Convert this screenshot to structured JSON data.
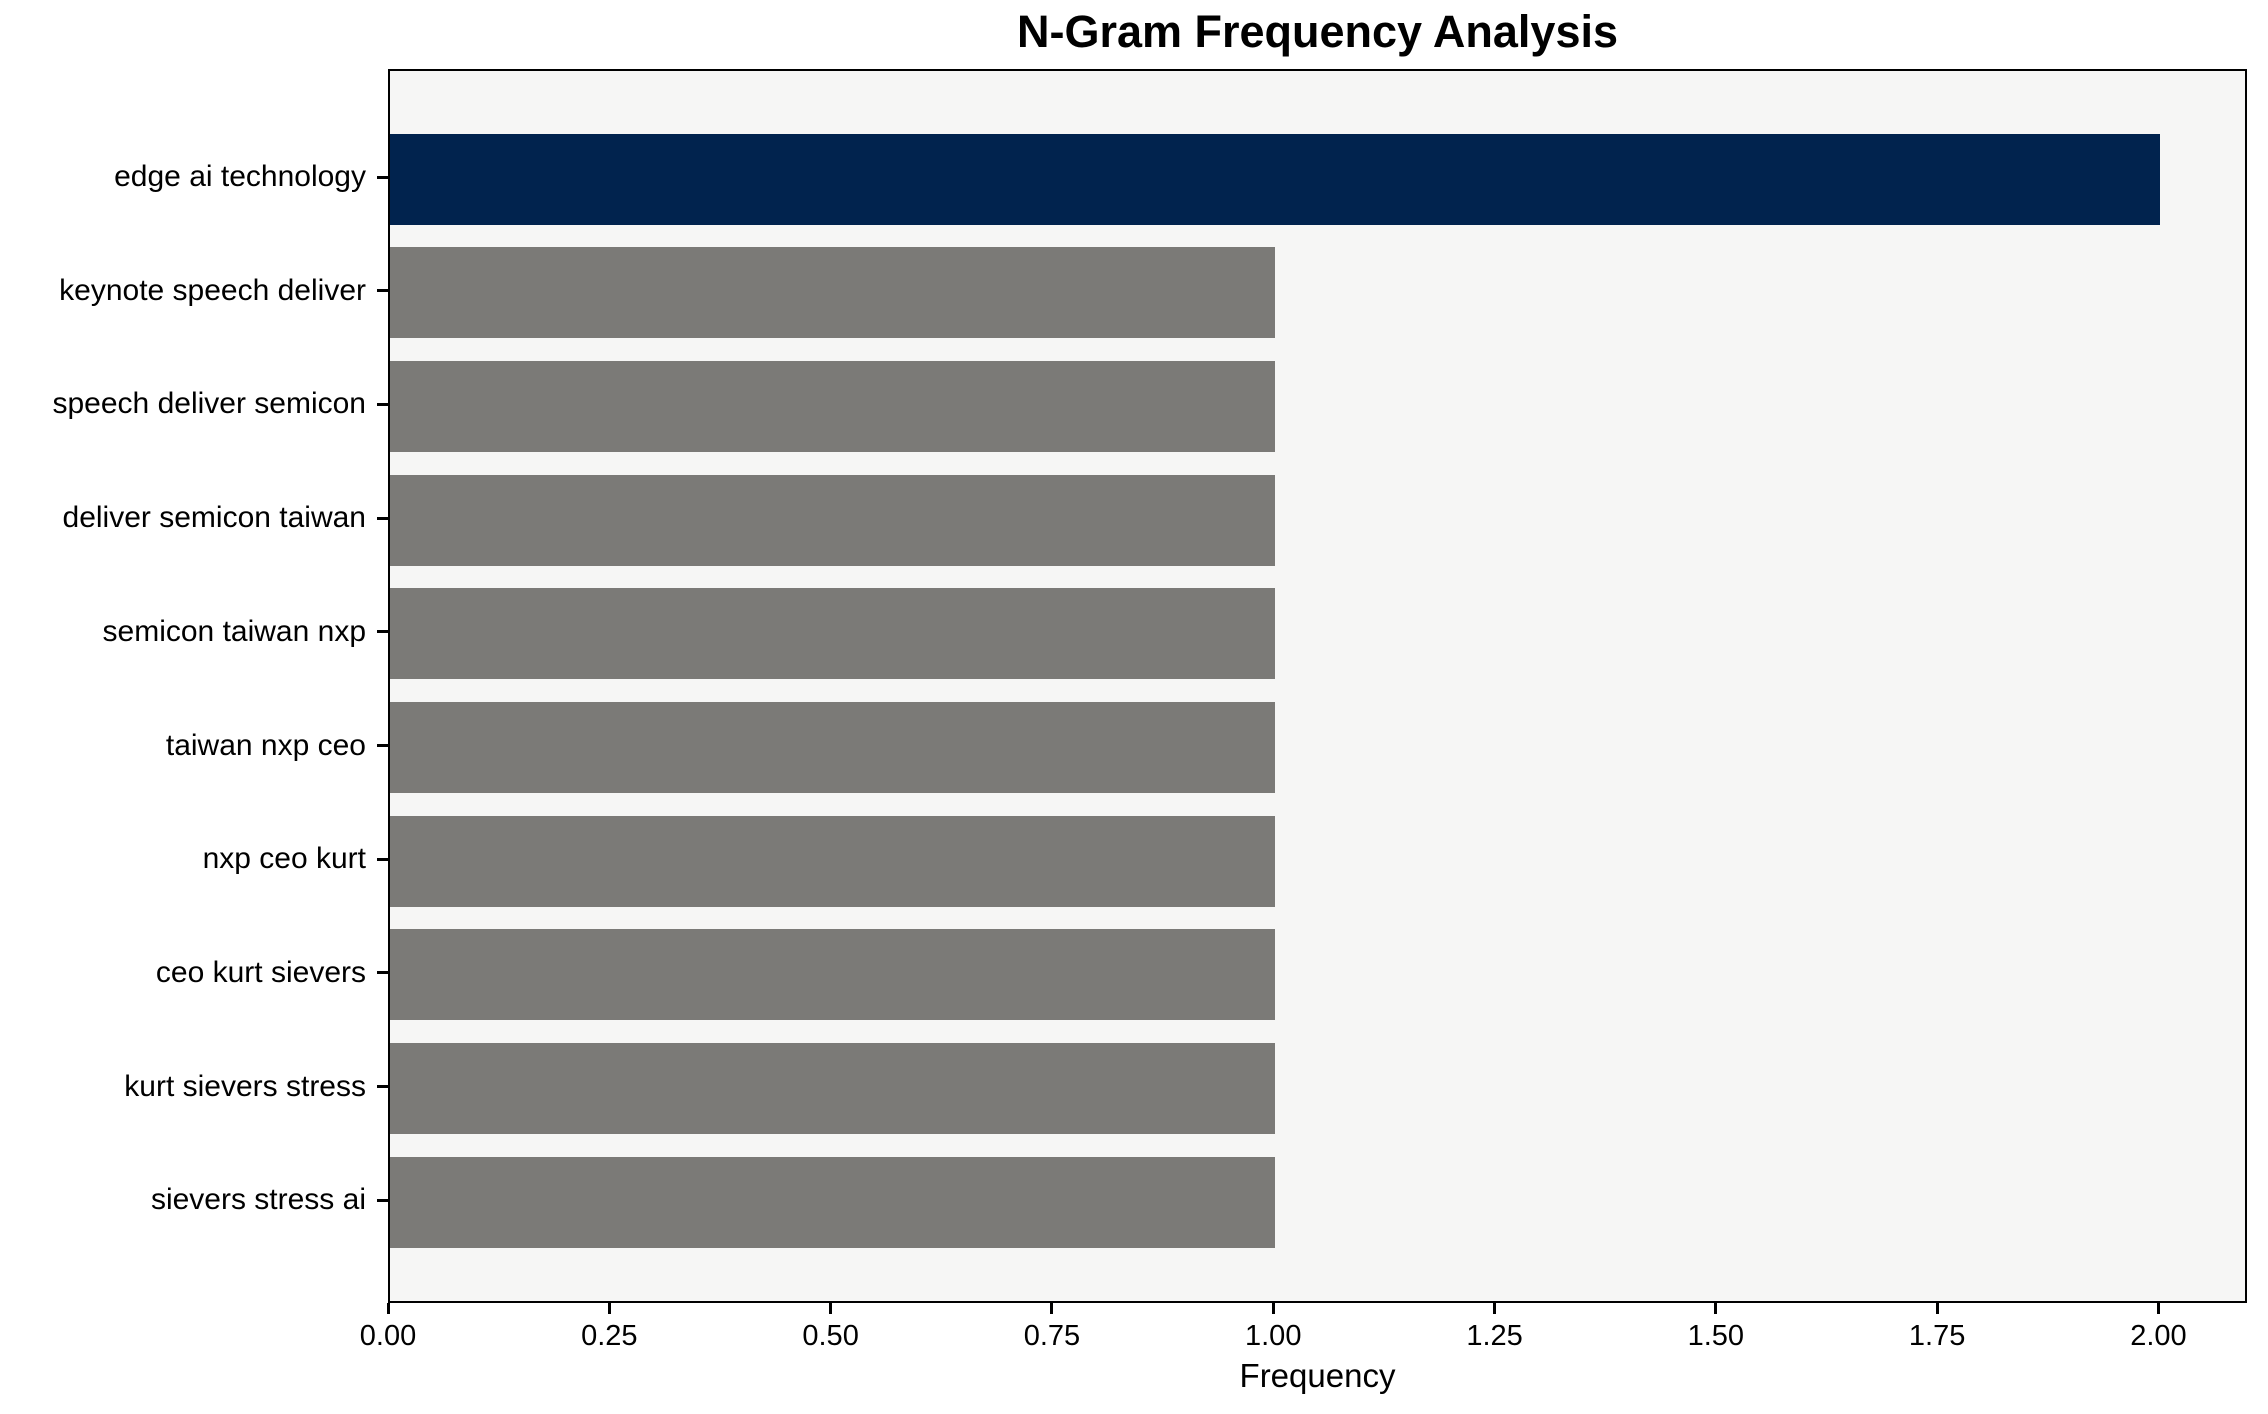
{
  "page": {
    "title": "N-Gram Frequency Analysis"
  },
  "chart_data": {
    "type": "bar",
    "orientation": "horizontal",
    "title": "N-Gram Frequency Analysis",
    "xlabel": "Frequency",
    "ylabel": "",
    "categories": [
      "edge ai technology",
      "keynote speech deliver",
      "speech deliver semicon",
      "deliver semicon taiwan",
      "semicon taiwan nxp",
      "taiwan nxp ceo",
      "nxp ceo kurt",
      "ceo kurt sievers",
      "kurt sievers stress",
      "sievers stress ai"
    ],
    "values": [
      2,
      1,
      1,
      1,
      1,
      1,
      1,
      1,
      1,
      1
    ],
    "xlim": [
      0,
      2.1
    ],
    "xticks": {
      "values": [
        0,
        0.25,
        0.5,
        0.75,
        1.0,
        1.25,
        1.5,
        1.75,
        2.0
      ],
      "labels": [
        "0.00",
        "0.25",
        "0.50",
        "0.75",
        "1.00",
        "1.25",
        "1.50",
        "1.75",
        "2.00"
      ]
    },
    "bar_colors": [
      "#01234e",
      "#7b7a77",
      "#7b7a77",
      "#7b7a77",
      "#7b7a77",
      "#7b7a77",
      "#7b7a77",
      "#7b7a77",
      "#7b7a77",
      "#7b7a77"
    ],
    "colors": {
      "highlight_bar": "#01234e",
      "default_bar": "#7b7a77",
      "plot_background": "#f6f6f5",
      "frame": "#000000",
      "text": "#000000"
    },
    "grid": false,
    "legend": "none",
    "bar_value_labels": "none"
  }
}
